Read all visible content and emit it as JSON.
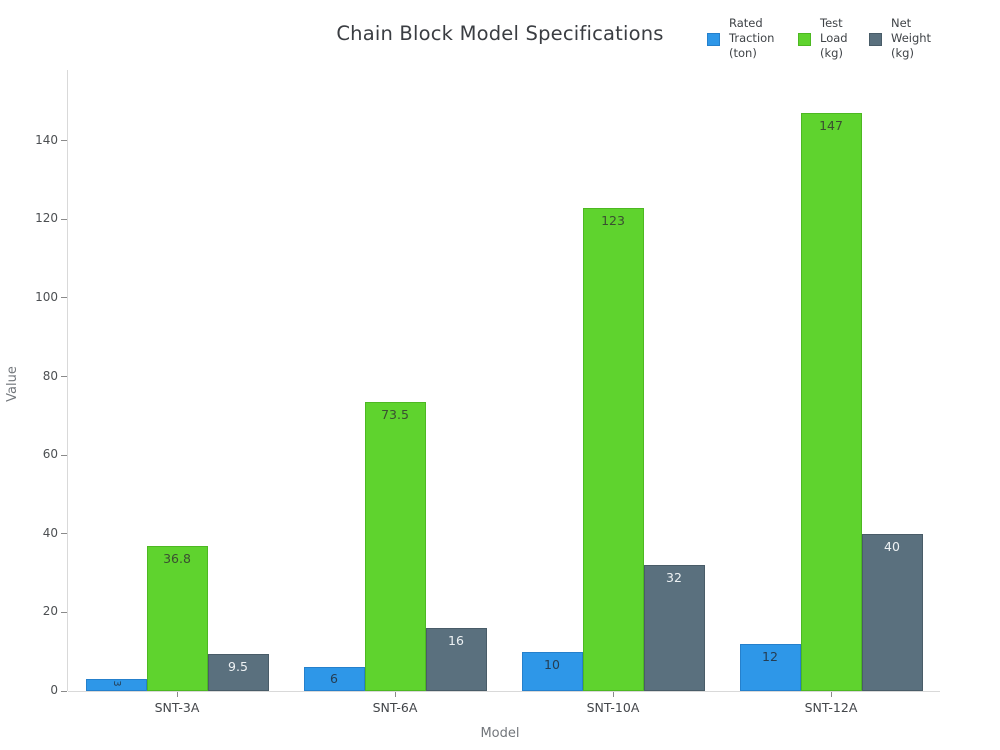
{
  "title": "Chain Block Model Specifications",
  "axes": {
    "x_title": "Model",
    "y_title": "Value"
  },
  "chart_data": {
    "type": "bar",
    "title": "Chain Block Model Specifications",
    "xlabel": "Model",
    "ylabel": "Value",
    "categories": [
      "SNT-3A",
      "SNT-6A",
      "SNT-10A",
      "SNT-12A"
    ],
    "series": [
      {
        "name": "Rated Traction (ton)",
        "legend_label": "Rated\nTraction\n(ton)",
        "values": [
          3,
          6,
          10,
          12
        ],
        "value_labels": [
          "3",
          "6",
          "10",
          "12"
        ],
        "color": "#2E97E8",
        "border_color": "#2580cc",
        "label_color": "#253d52"
      },
      {
        "name": "Test Load (kg)",
        "legend_label": "Test\nLoad\n(kg)",
        "values": [
          36.8,
          73.5,
          123,
          147
        ],
        "value_labels": [
          "36.8",
          "73.5",
          "123",
          "147"
        ],
        "color": "#5FD32E",
        "border_color": "#4db822",
        "label_color": "#3a4f31"
      },
      {
        "name": "Net Weight (kg)",
        "legend_label": "Net\nWeight\n(kg)",
        "values": [
          9.5,
          16,
          32,
          40
        ],
        "value_labels": [
          "9.5",
          "16",
          "32",
          "40"
        ],
        "color": "#5A707E",
        "border_color": "#495c68",
        "label_color": "#eef2f4"
      }
    ],
    "ylim": [
      0,
      158
    ],
    "yticks": [
      0,
      20,
      40,
      60,
      80,
      100,
      120,
      140
    ],
    "grid": false,
    "legend_position": "top-right"
  }
}
